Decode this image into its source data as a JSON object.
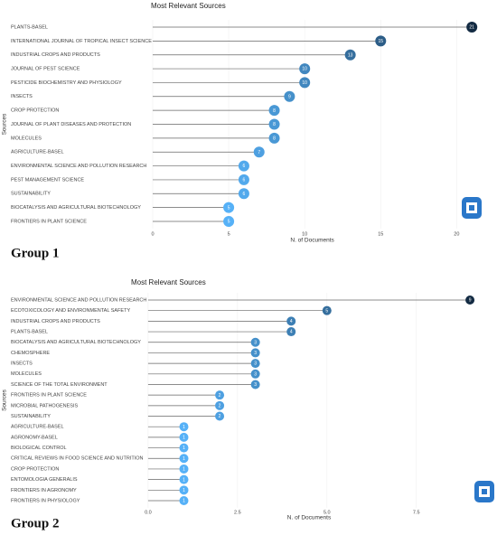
{
  "chart_data": [
    {
      "type": "lollipop",
      "title": "Most Relevant Sources",
      "x_label": "N. of Documents",
      "y_label": "Sources",
      "caption": "Group 1",
      "categories": [
        "PLANTS-BASEL",
        "INTERNATIONAL JOURNAL OF TROPICAL INSECT SCIENCE",
        "INDUSTRIAL CROPS AND PRODUCTS",
        "JOURNAL OF PEST SCIENCE",
        "PESTICIDE BIOCHEMISTRY AND PHYSIOLOGY",
        "INSECTS",
        "CROP PROTECTION",
        "JOURNAL OF PLANT DISEASES AND PROTECTION",
        "MOLECULES",
        "AGRICULTURE-BASEL",
        "ENVIRONMENTAL SCIENCE AND POLLUTION RESEARCH",
        "PEST MANAGEMENT SCIENCE",
        "SUSTAINABILITY",
        "BIOCATALYSIS AND AGRICULTURAL BIOTECHNOLOGY",
        "FRONTIERS IN PLANT SCIENCE"
      ],
      "values": [
        21,
        15,
        13,
        10,
        10,
        9,
        8,
        8,
        8,
        7,
        6,
        6,
        6,
        5,
        5
      ],
      "xlim": [
        -0.5,
        21.5
      ],
      "xticks": [
        0,
        5,
        10,
        15,
        20
      ],
      "grid": true,
      "color_scale": [
        "#56B1F7",
        "#132B43"
      ]
    },
    {
      "type": "lollipop",
      "title": "Most Relevant Sources",
      "x_label": "N. of Documents",
      "y_label": "Sources",
      "caption": "Group 2",
      "categories": [
        "ENVIRONMENTAL SCIENCE AND POLLUTION RESEARCH",
        "ECOTOXICOLOGY AND ENVIRONMENTAL SAFETY",
        "INDUSTRIAL CROPS AND PRODUCTS",
        "PLANTS-BASEL",
        "BIOCATALYSIS AND AGRICULTURAL BIOTECHNOLOGY",
        "CHEMOSPHERE",
        "INSECTS",
        "MOLECULES",
        "SCIENCE OF THE TOTAL ENVIRONMENT",
        "FRONTIERS IN PLANT SCIENCE",
        "MICROBIAL PATHOGENESIS",
        "SUSTAINABILITY",
        "AGRICULTURE-BASEL",
        "AGRONOMY-BASEL",
        "BIOLOGICAL CONTROL",
        "CRITICAL REVIEWS IN FOOD SCIENCE AND NUTRITION",
        "CROP PROTECTION",
        "ENTOMOLOGIA GENERALIS",
        "FRONTIERS IN AGRONOMY",
        "FRONTIERS IN PHYSIOLOGY"
      ],
      "values": [
        9,
        5,
        4,
        4,
        3,
        3,
        3,
        3,
        3,
        2,
        2,
        2,
        1,
        1,
        1,
        1,
        1,
        1,
        1,
        1
      ],
      "xlim": [
        -0.2,
        9.2
      ],
      "xticks": [
        {
          "value": 0,
          "label": "0.0"
        },
        2.5,
        {
          "value": 5,
          "label": "5.0"
        },
        7.5
      ],
      "grid": true,
      "color_scale": [
        "#56B1F7",
        "#132B43"
      ]
    }
  ]
}
